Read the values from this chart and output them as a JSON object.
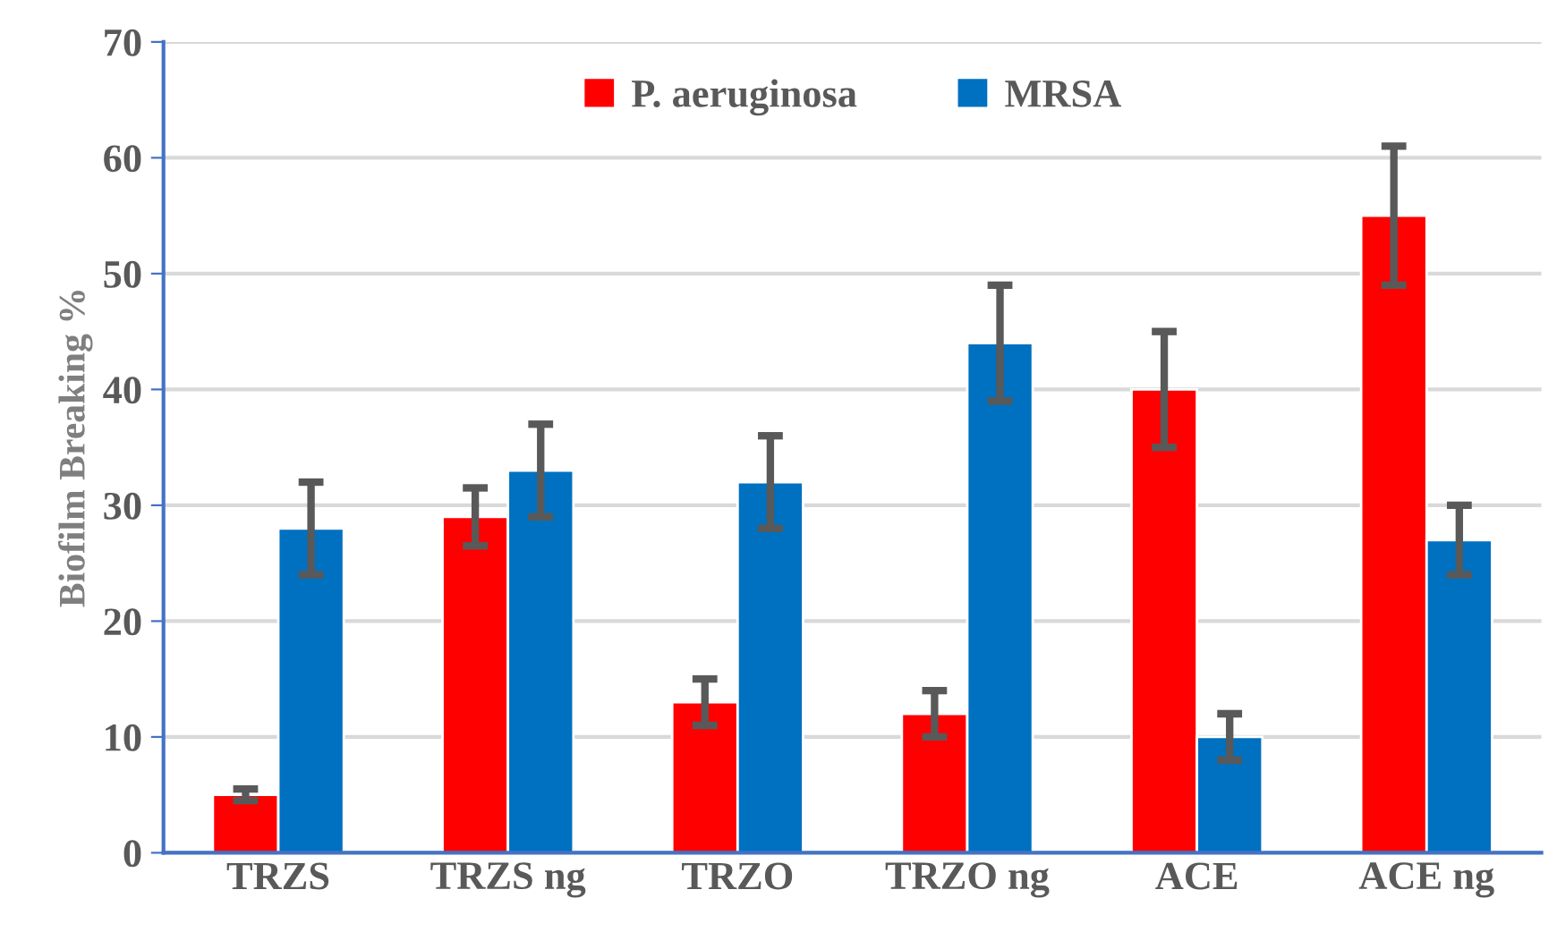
{
  "chart_data": {
    "type": "bar",
    "ylabel": "Biofilm Breaking %",
    "categories": [
      "TRZS",
      "TRZS ng",
      "TRZO",
      "TRZO ng",
      "ACE",
      "ACE ng"
    ],
    "series": [
      {
        "name": "P. aeruginosa",
        "color": "#ff0000",
        "values": [
          5,
          29,
          13,
          12,
          40,
          55
        ],
        "errors": [
          0.5,
          2.5,
          2,
          2,
          5,
          6
        ]
      },
      {
        "name": "MRSA",
        "color": "#0070c0",
        "values": [
          28,
          33,
          32,
          44,
          10,
          27
        ],
        "errors": [
          4,
          4,
          4,
          5,
          2,
          3
        ]
      }
    ],
    "ylim": [
      0,
      70
    ],
    "yticks": [
      0,
      10,
      20,
      30,
      40,
      50,
      60,
      70
    ],
    "grid": "y",
    "legend": "top"
  }
}
